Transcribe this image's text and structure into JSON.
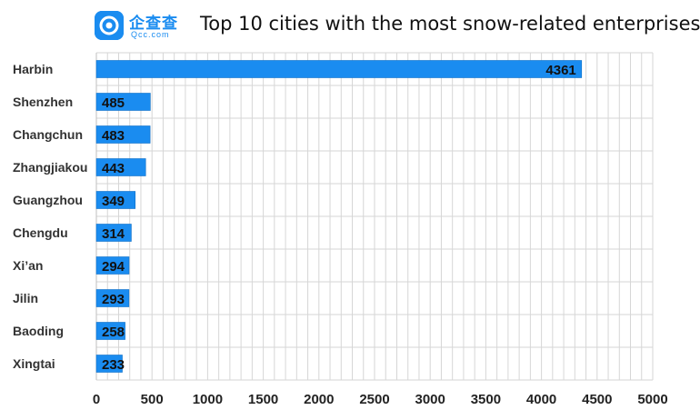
{
  "header": {
    "logo_cn": "企查查",
    "logo_en": "Qcc.com"
  },
  "chart_data": {
    "type": "bar",
    "orientation": "horizontal",
    "title": "Top 10 cities with the most snow-related enterprises",
    "categories": [
      "Harbin",
      "Shenzhen",
      "Changchun",
      "Zhangjiakou",
      "Guangzhou",
      "Chengdu",
      "Xi’an",
      "Jilin",
      "Baoding",
      "Xingtai"
    ],
    "values": [
      4361,
      485,
      483,
      443,
      349,
      314,
      294,
      293,
      258,
      233
    ],
    "xlim": [
      0,
      5000
    ],
    "xticks": [
      "0",
      "500",
      "1000",
      "1500",
      "2000",
      "2500",
      "3000",
      "3500",
      "4000",
      "4500",
      "5000"
    ],
    "grid": true,
    "bar_color": "#1a8cf0",
    "grid_color": "#d6d6d6"
  }
}
